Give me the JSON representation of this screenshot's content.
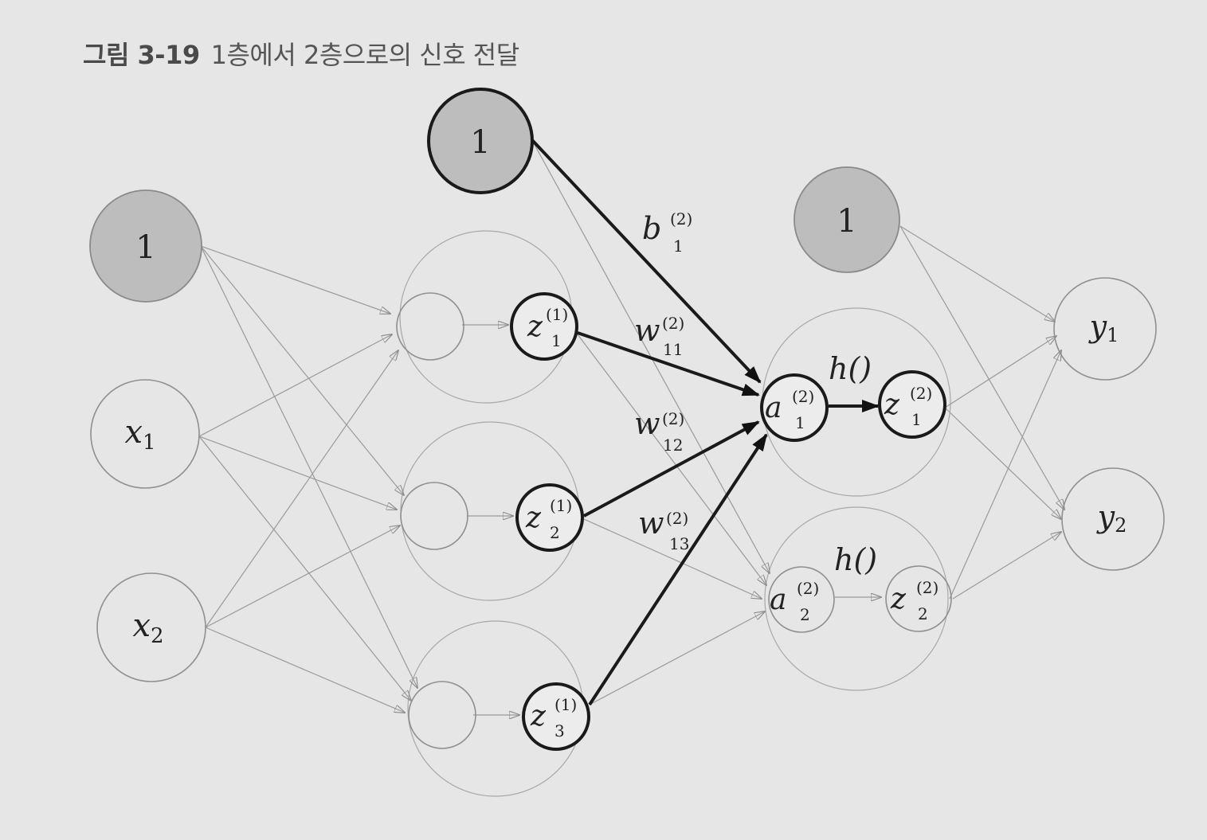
{
  "caption": {
    "figure_number": "그림 3-19",
    "title": "1층에서 2층으로의 신호 전달"
  },
  "nodes": {
    "bias_input": "1",
    "x1": {
      "base": "x",
      "sub": "1"
    },
    "x2": {
      "base": "x",
      "sub": "2"
    },
    "bias_layer1": "1",
    "z1_1": {
      "base": "z",
      "sup": "(1)",
      "sub": "1"
    },
    "z1_2": {
      "base": "z",
      "sup": "(1)",
      "sub": "2"
    },
    "z1_3": {
      "base": "z",
      "sup": "(1)",
      "sub": "3"
    },
    "bias_layer2": "1",
    "a2_1": {
      "base": "a",
      "sup": "(2)",
      "sub": "1"
    },
    "a2_2": {
      "base": "a",
      "sup": "(2)",
      "sub": "2"
    },
    "z2_1": {
      "base": "z",
      "sup": "(2)",
      "sub": "1"
    },
    "z2_2": {
      "base": "z",
      "sup": "(2)",
      "sub": "2"
    },
    "y1": {
      "base": "y",
      "sub": "1"
    },
    "y2": {
      "base": "y",
      "sub": "2"
    }
  },
  "edge_labels": {
    "b1": {
      "base": "b",
      "sup": "(2)",
      "sub": "1"
    },
    "w11": {
      "base": "w",
      "sup": "(2)",
      "sub": "11"
    },
    "w12": {
      "base": "w",
      "sup": "(2)",
      "sub": "12"
    },
    "w13": {
      "base": "w",
      "sup": "(2)",
      "sub": "13"
    },
    "h1": "h()",
    "h2": "h()"
  }
}
